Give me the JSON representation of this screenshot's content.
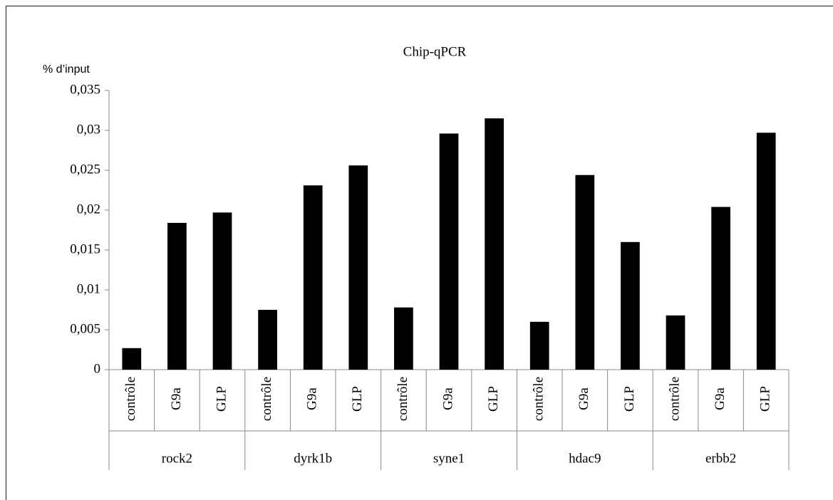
{
  "chart_data": {
    "type": "bar",
    "title": "Chip-qPCR",
    "y_label": "% d’input",
    "color": "#000000",
    "ylim": [
      0,
      0.035
    ],
    "yticks": [
      0,
      {
        "value": 0.005,
        "label": "0,005"
      },
      {
        "value": 0.01,
        "label": "0,01"
      },
      {
        "value": 0.015,
        "label": "0,015"
      },
      {
        "value": 0.02,
        "label": "0,02"
      },
      {
        "value": 0.025,
        "label": "0,025"
      },
      {
        "value": 0.03,
        "label": "0,03"
      },
      {
        "value": 0.035,
        "label": "0,035"
      }
    ],
    "groups": [
      {
        "name": "rock2",
        "categories": [
          "contrôle",
          "G9a",
          "GLP"
        ],
        "values": [
          0.0027,
          0.0184,
          0.0197
        ]
      },
      {
        "name": "dyrk1b",
        "categories": [
          "contrôle",
          "G9a",
          "GLP"
        ],
        "values": [
          0.0075,
          0.0231,
          0.0256
        ]
      },
      {
        "name": "syne1",
        "categories": [
          "contrôle",
          "G9a",
          "GLP"
        ],
        "values": [
          0.0078,
          0.0296,
          0.0315
        ]
      },
      {
        "name": "hdac9",
        "categories": [
          "contrôle",
          "G9a",
          "GLP"
        ],
        "values": [
          0.006,
          0.0244,
          0.016
        ]
      },
      {
        "name": "erbb2",
        "categories": [
          "contrôle",
          "G9a",
          "GLP"
        ],
        "values": [
          0.0068,
          0.0204,
          0.0297
        ]
      }
    ]
  }
}
